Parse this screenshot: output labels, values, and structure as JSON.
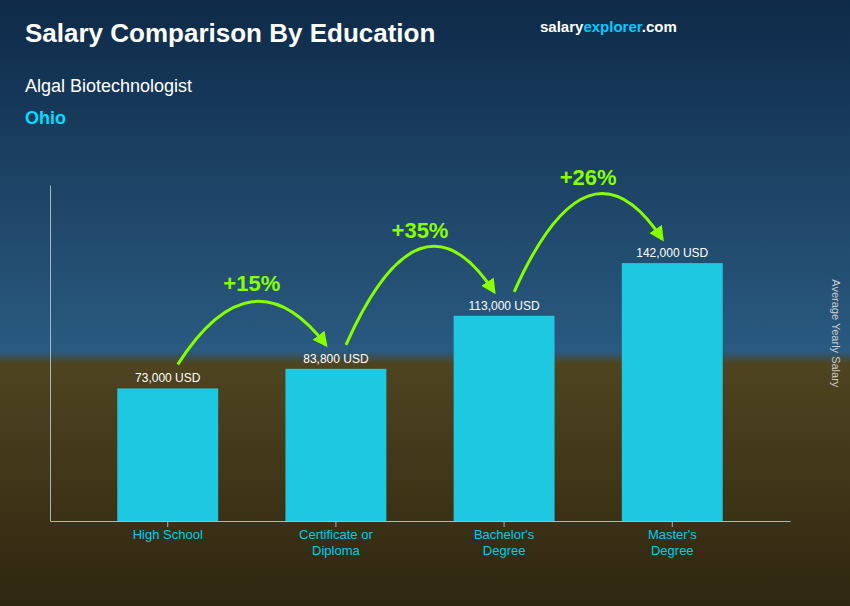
{
  "chart_data": {
    "type": "bar",
    "title": "Salary Comparison By Education",
    "subtitle": [
      "Algal Biotechnologist",
      "Ohio"
    ],
    "watermark": [
      "salary",
      "explorer",
      ".com"
    ],
    "y_label": "Average Yearly Salary",
    "categories": [
      "High School",
      "Certificate or\nDiploma",
      "Bachelor's\nDegree",
      "Master's\nDegree"
    ],
    "values": [
      73000,
      83800,
      113000,
      142000
    ],
    "value_labels": [
      "73,000 USD",
      "83,800 USD",
      "113,000 USD",
      "142,000 USD"
    ],
    "data_labels": true,
    "color": "#1ec8e0",
    "ylim": [
      0,
      185000
    ],
    "tick_labels": "x",
    "grid": false,
    "annotations": [
      {
        "text": "+15%",
        "color": "#88ff00"
      },
      {
        "text": "+35%",
        "color": "#88ff00"
      },
      {
        "text": "+26%",
        "color": "#88ff00"
      }
    ]
  }
}
